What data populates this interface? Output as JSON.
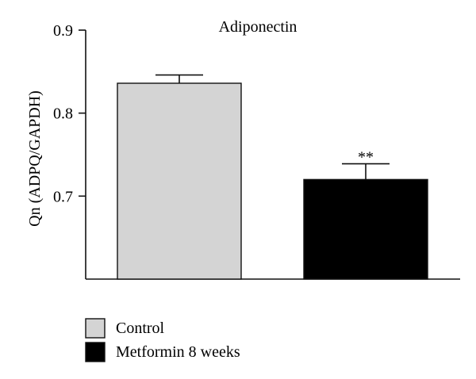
{
  "chart_data": {
    "type": "bar",
    "title": "Adiponectin",
    "ylabel": "Qn (ADPQ/GAPDH)",
    "xlabel": "",
    "ylim": [
      0.6,
      0.9
    ],
    "yticks": [
      "0.7",
      "0.8",
      "0.9"
    ],
    "categories": [
      "Control",
      "Metformin 8 weeks"
    ],
    "values": [
      0.836,
      0.72
    ],
    "errors": [
      0.01,
      0.019
    ],
    "annotations": [
      "",
      "**"
    ],
    "colors": [
      "#d4d4d4",
      "#000000"
    ],
    "legend": {
      "placement": "bottom-left",
      "entries": [
        "Control",
        "Metformin 8 weeks"
      ]
    },
    "grid": false
  }
}
